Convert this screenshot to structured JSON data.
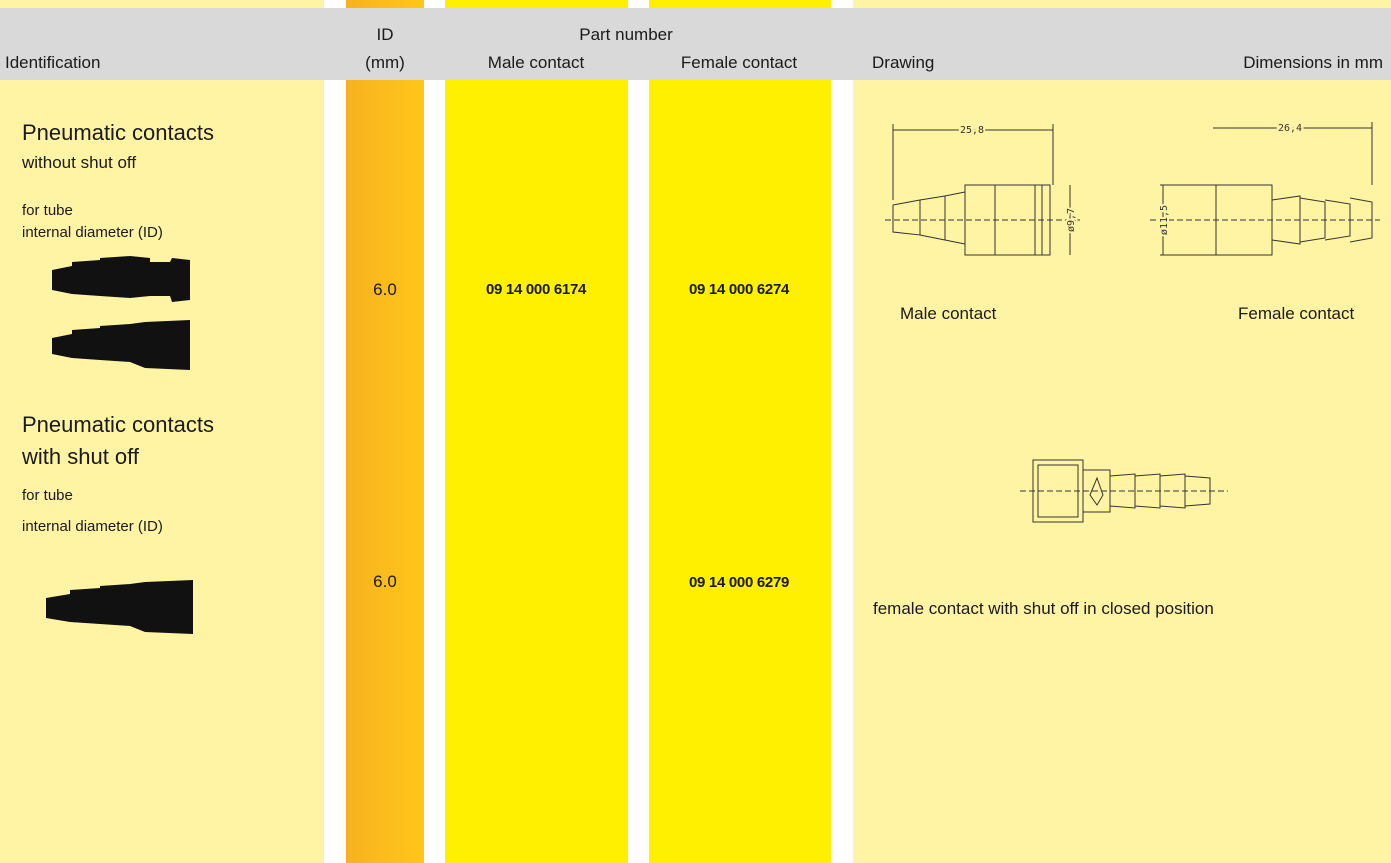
{
  "header": {
    "identification": "Identification",
    "id": "ID",
    "id_unit": "(mm)",
    "part_number": "Part number",
    "male_contact": "Male contact",
    "female_contact": "Female contact",
    "drawing": "Drawing",
    "dimensions": "Dimensions in mm"
  },
  "rows": [
    {
      "title": [
        "Pneumatic contacts",
        "without shut off"
      ],
      "subtitle": [
        "for tube",
        "internal diameter (ID)"
      ],
      "id": "6.0",
      "male": "09 14 000 6174",
      "female": "09 14 000 6274",
      "drawing_labels": {
        "male_length": "25,8",
        "male_diameter": "ø9,7",
        "female_length": "26,4",
        "female_diameter": "ø11,5"
      },
      "captions": [
        "Male contact",
        "Female contact"
      ]
    },
    {
      "title": [
        "Pneumatic contacts",
        "with shut off"
      ],
      "subtitle": [
        "for tube",
        "internal diameter (ID)"
      ],
      "id": "6.0",
      "female": "09 14 000 6279",
      "captions": [
        "female contact with shut off in closed position"
      ]
    }
  ]
}
